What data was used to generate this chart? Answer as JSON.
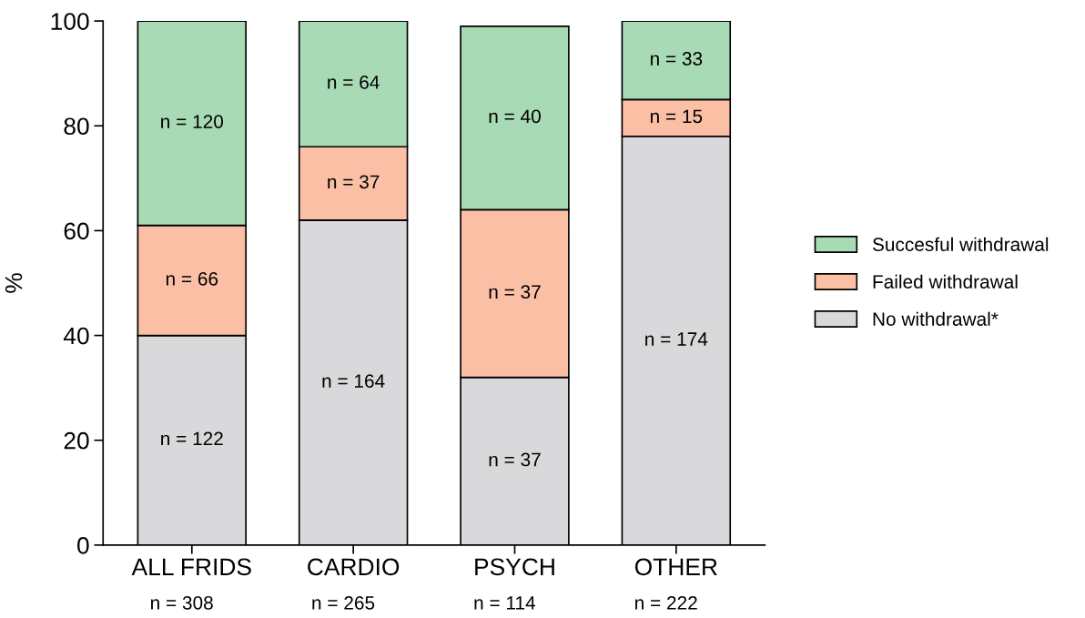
{
  "chart_data": {
    "type": "bar",
    "stacked": true,
    "ylabel": "%",
    "categories": [
      "ALL FRIDS",
      "CARDIO",
      "PSYCH",
      "OTHER"
    ],
    "series": [
      {
        "name": "No withdrawal*",
        "color": "#d9d9db",
        "values": [
          40,
          62,
          32,
          78
        ]
      },
      {
        "name": "Failed withdrawal",
        "color": "#fbbfa6",
        "values": [
          21,
          14,
          32,
          7
        ]
      },
      {
        "name": "Succesful withdrawal",
        "color": "#a8dab5",
        "values": [
          39,
          24,
          35,
          15
        ]
      }
    ],
    "ylim": [
      0,
      100
    ],
    "yticks": [
      0,
      20,
      40,
      60,
      80,
      100
    ],
    "grid": false,
    "legend": "right",
    "annotations": [
      "n = 122",
      "n = 66",
      "n = 120",
      "n = 164",
      "n = 37",
      "n = 64",
      "n = 37",
      "n = 37",
      "n = 40",
      "n = 174",
      "n = 15",
      "n = 33",
      "n = 308",
      "n = 265",
      "n = 114",
      "n = 222"
    ]
  }
}
